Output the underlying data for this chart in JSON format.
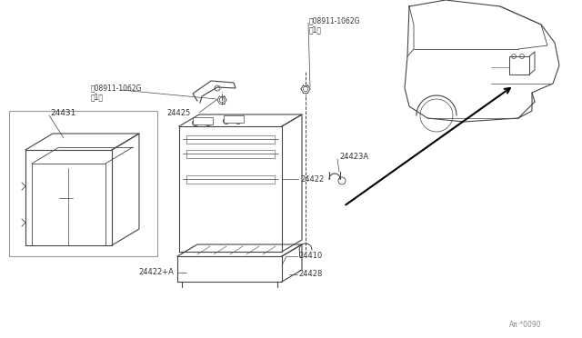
{
  "background_color": "#ffffff",
  "fig_width": 6.4,
  "fig_height": 3.72,
  "dpi": 100,
  "parts": {
    "nut1_label": "ⓝ08911-1062G\n（1）",
    "nut2_label": "ⓝ08911-1062G\n（1）",
    "part_24425": "24425",
    "part_24431": "24431",
    "part_24422": "24422",
    "part_24422A": "24422+A",
    "part_24410": "24410",
    "part_24428": "24428",
    "part_24423A": "24423A",
    "watermark": "Aπ·*0090"
  },
  "lc": "#444444",
  "tc": "#333333"
}
